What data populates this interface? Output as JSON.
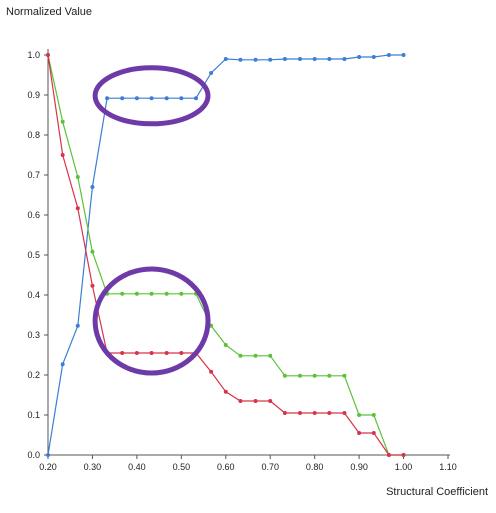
{
  "chart_data": {
    "type": "line",
    "xlabel": "Structural Coefficient",
    "ylabel": "Normalized Value",
    "xlim": [
      0.2,
      1.1
    ],
    "ylim": [
      0.0,
      1.0
    ],
    "x_ticks": [
      "0.20",
      "0.30",
      "0.40",
      "0.50",
      "0.60",
      "0.70",
      "0.80",
      "0.90",
      "1.00",
      "1.10"
    ],
    "y_ticks": [
      "0.0",
      "0.1",
      "0.2",
      "0.3",
      "0.4",
      "0.5",
      "0.6",
      "0.7",
      "0.8",
      "0.9",
      "1.0"
    ],
    "grid": false,
    "x": [
      0.2,
      0.233,
      0.267,
      0.3,
      0.333,
      0.367,
      0.4,
      0.433,
      0.467,
      0.5,
      0.533,
      0.567,
      0.6,
      0.633,
      0.667,
      0.7,
      0.733,
      0.767,
      0.8,
      0.833,
      0.867,
      0.9,
      0.933,
      0.967,
      1.0
    ],
    "series": [
      {
        "color": "#3a7fd5",
        "values": [
          0.0,
          0.227,
          0.323,
          0.67,
          0.892,
          0.892,
          0.892,
          0.892,
          0.892,
          0.892,
          0.892,
          0.955,
          0.99,
          0.988,
          0.988,
          0.988,
          0.99,
          0.99,
          0.99,
          0.99,
          0.99,
          0.995,
          0.995,
          1.0,
          1.0
        ]
      },
      {
        "color": "#5cc23a",
        "values": [
          1.0,
          0.833,
          0.695,
          0.508,
          0.403,
          0.403,
          0.403,
          0.403,
          0.403,
          0.403,
          0.403,
          0.323,
          0.275,
          0.248,
          0.248,
          0.248,
          0.198,
          0.198,
          0.198,
          0.198,
          0.198,
          0.1,
          0.1,
          0.0,
          0.0
        ]
      },
      {
        "color": "#d8334a",
        "values": [
          1.0,
          0.75,
          0.617,
          0.423,
          0.255,
          0.255,
          0.255,
          0.255,
          0.255,
          0.255,
          0.255,
          0.208,
          0.158,
          0.135,
          0.135,
          0.135,
          0.105,
          0.105,
          0.105,
          0.105,
          0.105,
          0.055,
          0.055,
          0.0,
          0.0
        ]
      }
    ],
    "annotations": [
      {
        "type": "ellipse",
        "color": "#6e3aa8",
        "x": 0.433,
        "y": 0.898,
        "rx": 0.127,
        "ry": 0.07
      },
      {
        "type": "ellipse",
        "color": "#6e3aa8",
        "x": 0.433,
        "y": 0.335,
        "rx": 0.127,
        "ry": 0.13
      }
    ]
  }
}
